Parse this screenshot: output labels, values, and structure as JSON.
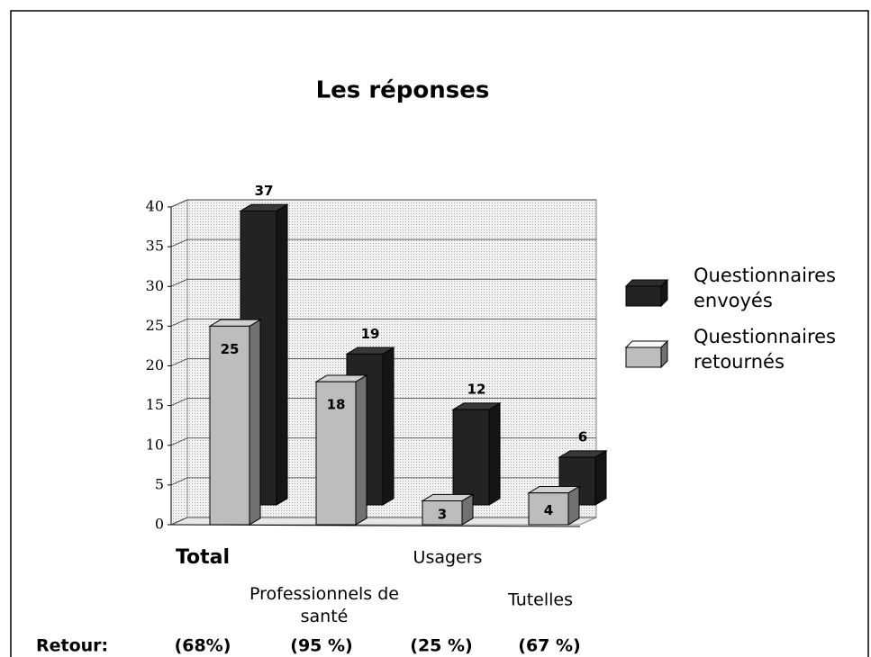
{
  "chart_data": {
    "type": "bar3d",
    "title": "Les réponses",
    "categories": [
      "Total",
      "Professionnels de santé",
      "Usagers",
      "Tutelles"
    ],
    "series": [
      {
        "name": "Questionnaires envoyés",
        "color": "#232323",
        "values": [
          37,
          19,
          12,
          6
        ]
      },
      {
        "name": "Questionnaires retournés",
        "color": "#bdbdbd",
        "values": [
          25,
          18,
          3,
          4
        ]
      }
    ],
    "ylim": [
      0,
      40
    ],
    "yticks": [
      0,
      5,
      10,
      15,
      20,
      25,
      30,
      35,
      40
    ],
    "grid": true,
    "legend": "right",
    "return_label": "Retour:",
    "return_rates": [
      "(68%)",
      "(95 %)",
      "(25 %)",
      "(67 %)"
    ]
  }
}
